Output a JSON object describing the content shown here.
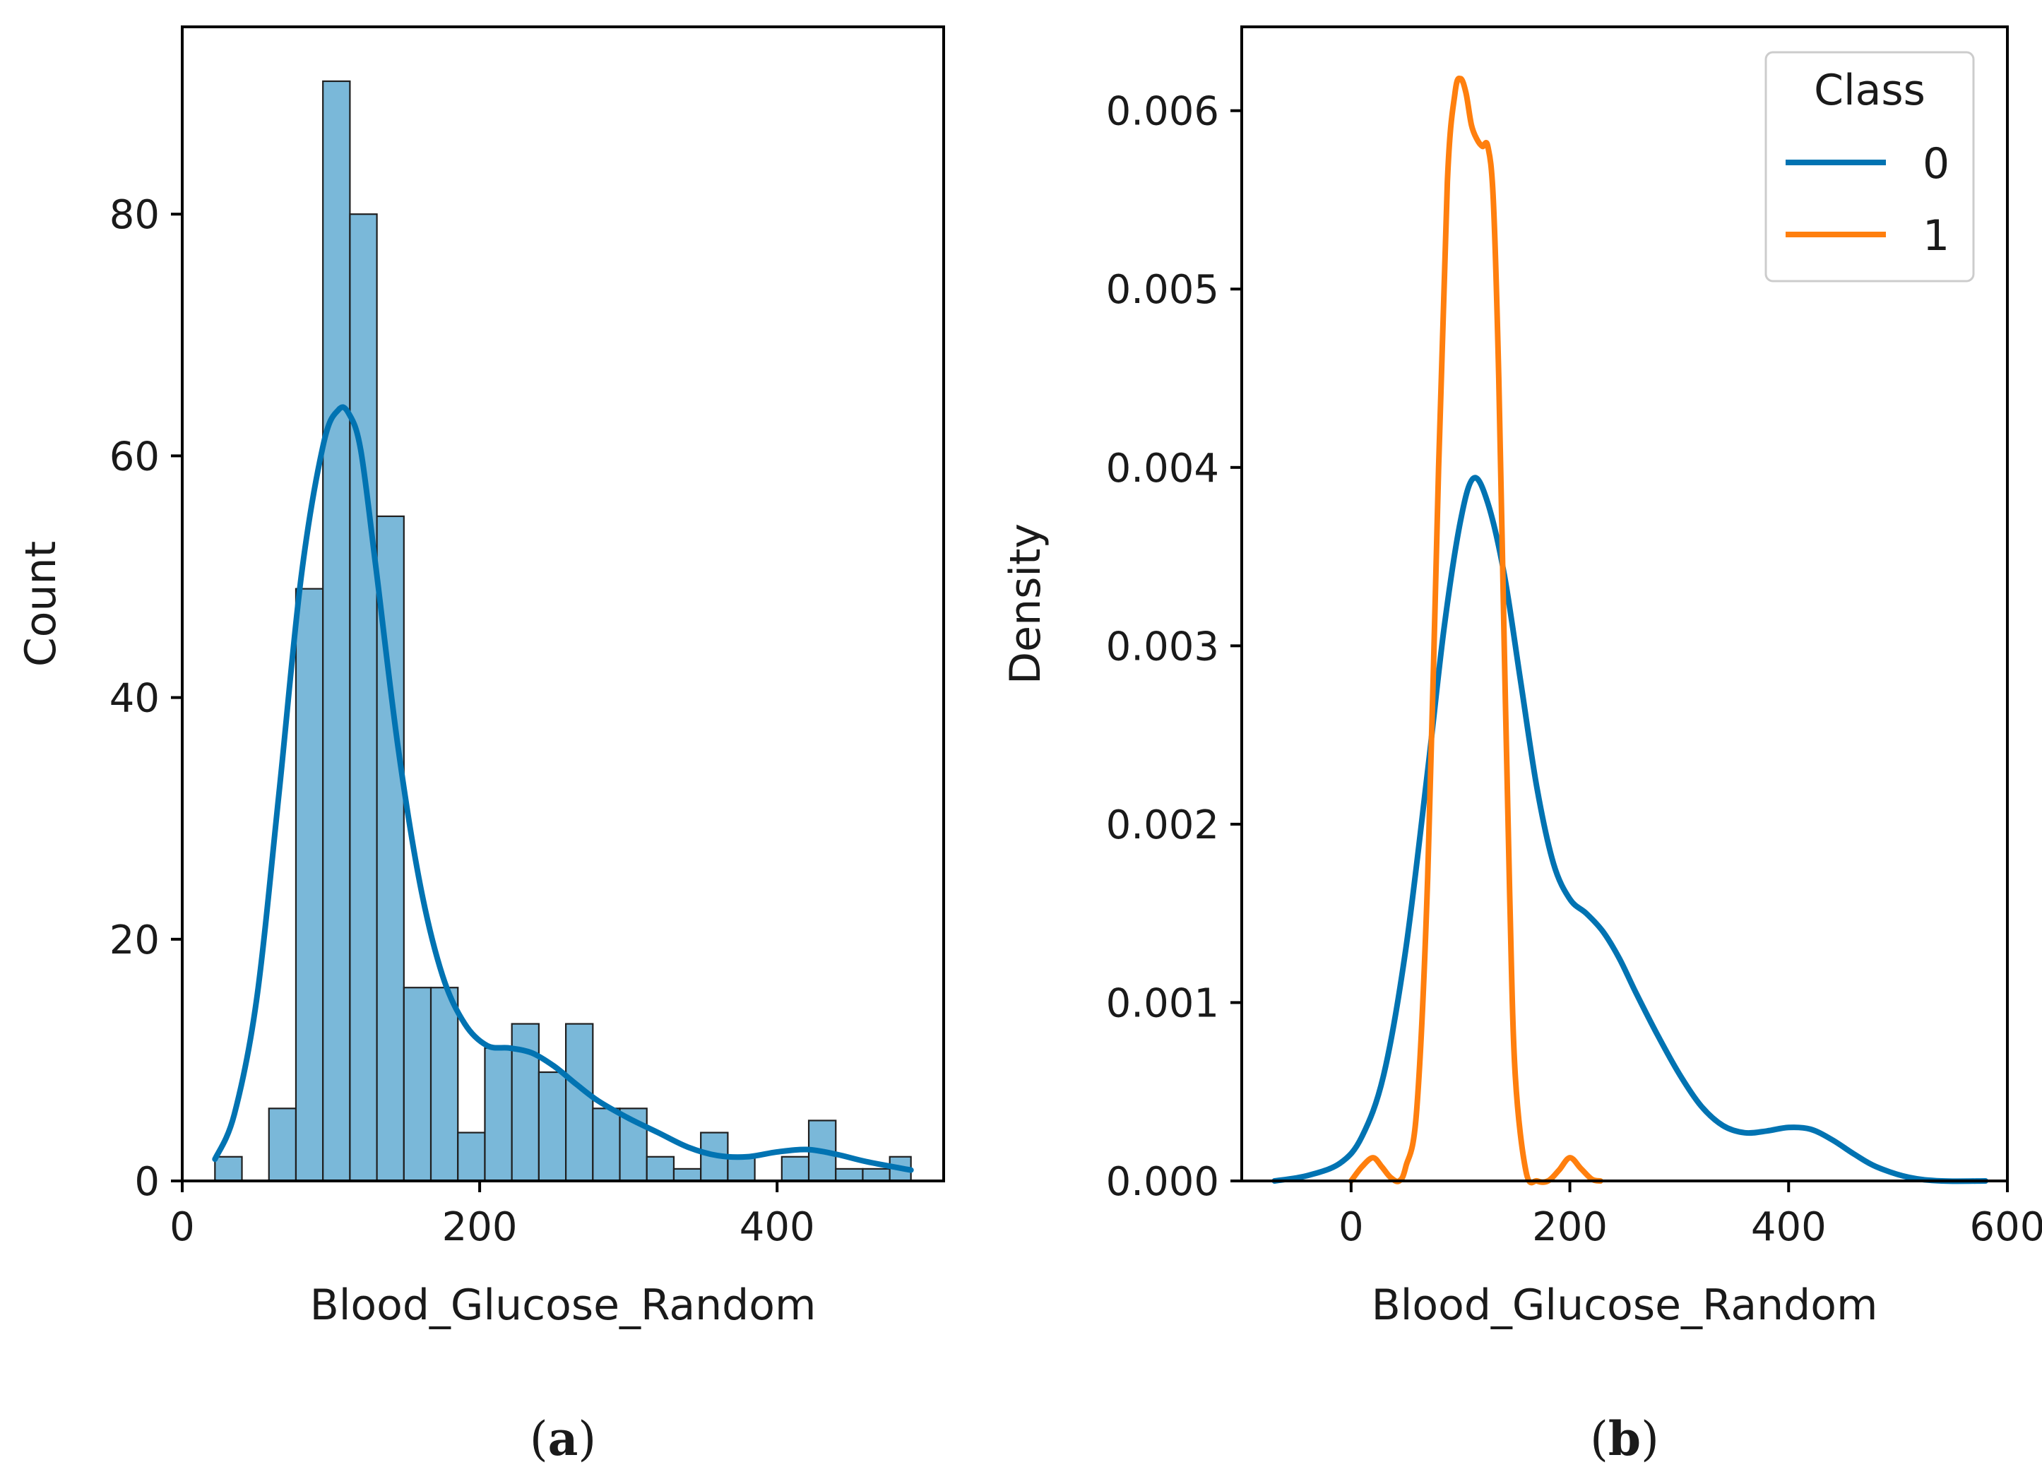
{
  "chart_data": [
    {
      "type": "bar",
      "panel_label": "a",
      "xlabel": "Blood_Glucose_Random",
      "ylabel": "Count",
      "xlim": [
        0,
        512
      ],
      "ylim": [
        0,
        95.5
      ],
      "xticks": [
        0,
        200,
        400
      ],
      "yticks": [
        0,
        20,
        40,
        60,
        80
      ],
      "bin_edges": [
        22,
        40.15,
        58.3,
        76.45,
        94.6,
        112.75,
        130.9,
        149.05,
        167.2,
        185.35,
        203.5,
        221.65,
        239.8,
        257.95,
        276.1,
        294.25,
        312.4,
        330.55,
        348.7,
        366.85,
        385,
        403.15,
        421.3,
        439.45,
        457.6,
        475.75,
        490
      ],
      "values": [
        2,
        0,
        6,
        49,
        91,
        80,
        55,
        16,
        16,
        4,
        11,
        13,
        9,
        13,
        6,
        6,
        2,
        1,
        4,
        2,
        0,
        2,
        5,
        1,
        1,
        2
      ],
      "bar_color": "#7ab8d9",
      "kde": {
        "color": "#0173b2",
        "x": [
          22,
          35,
          50,
          65,
          80,
          95,
          105,
          112,
          120,
          130,
          145,
          160,
          175,
          190,
          205,
          220,
          235,
          250,
          265,
          280,
          300,
          320,
          340,
          360,
          380,
          400,
          420,
          440,
          460,
          490
        ],
        "y": [
          1.8,
          5.5,
          15,
          32,
          50,
          61,
          63.8,
          63.5,
          60.5,
          51,
          36,
          24.5,
          17,
          13,
          11.2,
          11,
          10.6,
          9.5,
          8,
          6.6,
          5.2,
          4,
          2.8,
          2.1,
          2,
          2.4,
          2.6,
          2.2,
          1.6,
          0.9
        ]
      }
    },
    {
      "type": "line",
      "panel_label": "b",
      "xlabel": "Blood_Glucose_Random",
      "ylabel": "Density",
      "xlim": [
        -100,
        600
      ],
      "ylim": [
        0,
        0.00647
      ],
      "xticks": [
        0,
        200,
        400,
        600
      ],
      "yticks": [
        0.0,
        0.001,
        0.002,
        0.003,
        0.004,
        0.005,
        0.006
      ],
      "ytick_labels": [
        "0.000",
        "0.001",
        "0.002",
        "0.003",
        "0.004",
        "0.005",
        "0.006"
      ],
      "legend": {
        "title": "Class",
        "position": "upper right"
      },
      "series": [
        {
          "name": "0",
          "color": "#0173b2",
          "x": [
            -70,
            -40,
            -10,
            10,
            30,
            50,
            70,
            85,
            100,
            112,
            125,
            140,
            155,
            170,
            185,
            200,
            215,
            230,
            245,
            260,
            280,
            300,
            320,
            340,
            360,
            380,
            400,
            420,
            440,
            460,
            480,
            510,
            540,
            580
          ],
          "y": [
            0.0,
            3e-05,
            0.0001,
            0.00025,
            0.0006,
            0.0013,
            0.0023,
            0.0031,
            0.0037,
            0.00394,
            0.0038,
            0.0034,
            0.0028,
            0.0022,
            0.00178,
            0.00158,
            0.0015,
            0.0014,
            0.00125,
            0.00106,
            0.00082,
            0.0006,
            0.00042,
            0.00031,
            0.00027,
            0.00028,
            0.0003,
            0.00029,
            0.00023,
            0.00015,
            8e-05,
            2e-05,
            0.0,
            0.0
          ]
        },
        {
          "name": "1",
          "color": "#ff7f0e",
          "x": [
            0,
            10,
            20,
            28,
            36,
            44,
            50,
            60,
            70,
            80,
            88,
            95,
            100,
            105,
            110,
            115,
            120,
            125,
            130,
            135,
            140,
            145,
            150,
            160,
            170,
            180,
            190,
            200,
            210,
            220,
            228
          ],
          "y": [
            0.0,
            8e-05,
            0.00013,
            8e-05,
            2e-05,
            0.0,
            8e-05,
            0.0004,
            0.0017,
            0.004,
            0.0056,
            0.0061,
            0.00618,
            0.0061,
            0.00592,
            0.00584,
            0.0058,
            0.0058,
            0.0055,
            0.0045,
            0.003,
            0.0016,
            0.0006,
            5e-05,
            0.0,
            0.0,
            6e-05,
            0.00013,
            7e-05,
            1e-05,
            0.0
          ]
        }
      ]
    }
  ]
}
